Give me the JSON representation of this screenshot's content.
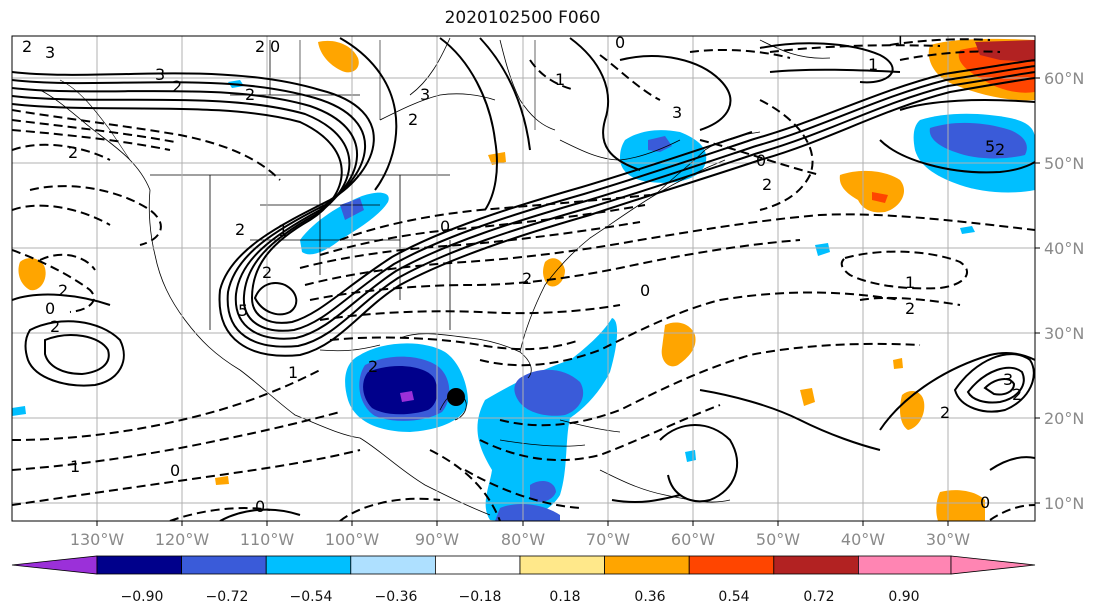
{
  "title": "2020102500 F060",
  "map": {
    "lon_labels": [
      "130°W",
      "120°W",
      "110°W",
      "100°W",
      "90°W",
      "80°W",
      "70°W",
      "60°W",
      "50°W",
      "40°W",
      "30°W"
    ],
    "lat_labels": [
      "60°N",
      "50°N",
      "40°N",
      "30°N",
      "20°N",
      "10°N"
    ],
    "contour_labels": [
      "2",
      "3",
      "2",
      "0",
      "2",
      "3",
      "0",
      "3",
      "2",
      "3",
      "1",
      "2",
      "1",
      "2",
      "0",
      "5",
      "2",
      "2",
      "0",
      "1",
      "2",
      "2",
      "3",
      "2",
      "5",
      "1",
      "2",
      "0",
      "0",
      "2",
      "1",
      "2",
      "2",
      "1",
      "0",
      "0",
      "2",
      "2",
      "0",
      "1"
    ],
    "storm_marker": "black dot near Yucatan (approx 87°W, 23°N)"
  },
  "colorbar": {
    "ticks": [
      "−0.90",
      "−0.72",
      "−0.54",
      "−0.36",
      "−0.18",
      "0.18",
      "0.36",
      "0.54",
      "0.72",
      "0.90"
    ],
    "colors": [
      "#9b30d9",
      "#00008b",
      "#3a5bd9",
      "#00bfff",
      "#aee0ff",
      "#ffffff",
      "#ffe88a",
      "#ffa500",
      "#ff4500",
      "#b22222",
      "#ff85b3"
    ]
  }
}
